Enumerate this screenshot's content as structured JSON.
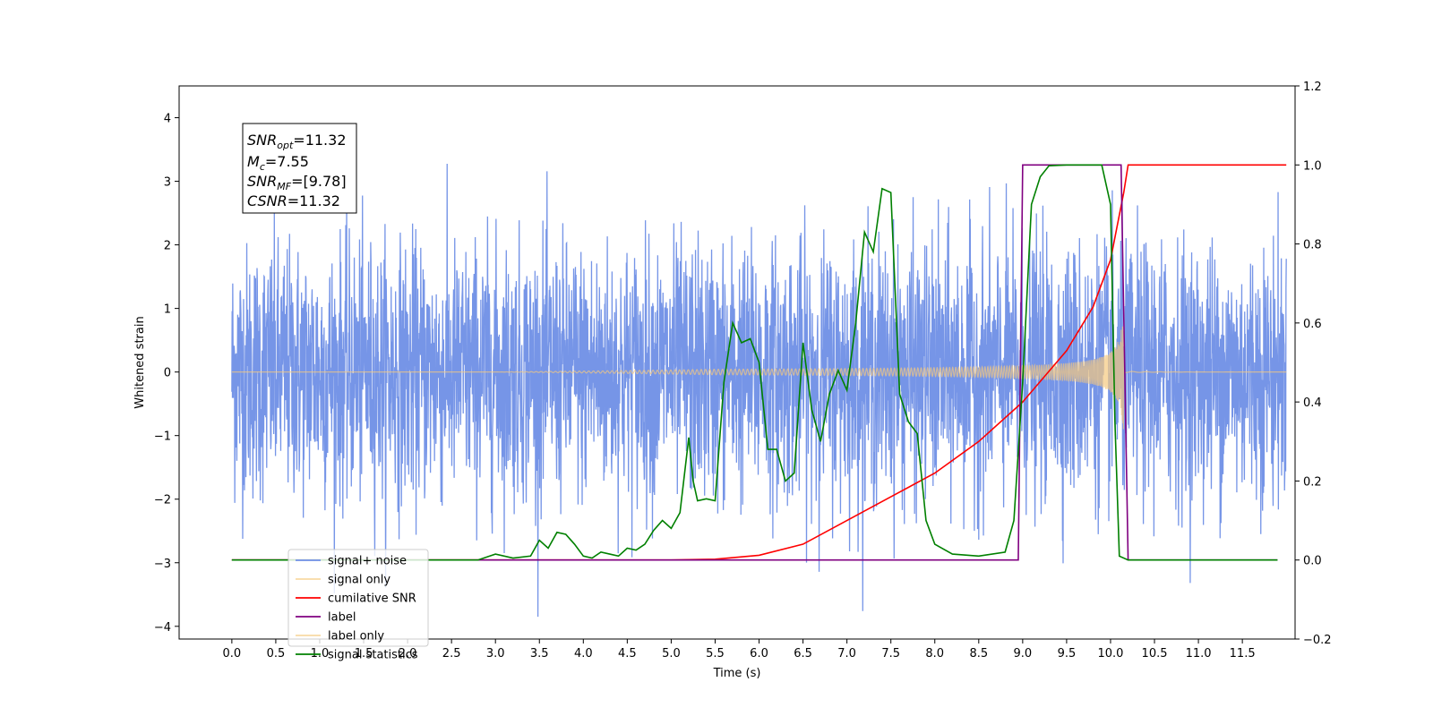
{
  "chart_data": {
    "type": "line",
    "xlabel": "Time (s)",
    "ylabel_left": "Whitened strain",
    "ylabel_right": "",
    "xlim": [
      -0.6,
      12.1
    ],
    "ylim_left": [
      -4.2,
      4.5
    ],
    "ylim_right": [
      -0.2,
      1.2
    ],
    "x_ticks": [
      "0.0",
      "0.5",
      "1.0",
      "1.5",
      "2.0",
      "2.5",
      "3.0",
      "3.5",
      "4.0",
      "4.5",
      "5.0",
      "5.5",
      "6.0",
      "6.5",
      "7.0",
      "7.5",
      "8.0",
      "8.5",
      "9.0",
      "9.5",
      "10.0",
      "10.5",
      "11.0",
      "11.5"
    ],
    "y_ticks_left": [
      "-4",
      "-3",
      "-2",
      "-1",
      "0",
      "1",
      "2",
      "3",
      "4"
    ],
    "y_ticks_right": [
      "-0.2",
      "0.0",
      "0.2",
      "0.4",
      "0.6",
      "0.8",
      "1.0",
      "1.2"
    ],
    "grid": false,
    "legend_position": "lower-left",
    "annotation": {
      "snr_opt": {
        "base": "SNR",
        "sub": "opt",
        "value": "=11.32"
      },
      "mc": {
        "base": "M",
        "sub": "c",
        "value": "=7.55"
      },
      "snr_mf": {
        "base": "SNR",
        "sub": "MF",
        "value": "=[9.78]"
      },
      "csnr": {
        "base": "CSNR",
        "value": "=11.32"
      }
    },
    "series": [
      {
        "name": "signal+ noise",
        "color": "#6f8fe6",
        "axis": "left",
        "style": "noise",
        "x_range": [
          0.0,
          12.0
        ],
        "sigma": 1.0,
        "envelope_max": 4.1
      },
      {
        "name": "signal only",
        "color": "#f5c97f",
        "axis": "left",
        "style": "chirp",
        "x_range": [
          0.0,
          10.15
        ],
        "amp_max": 0.9,
        "peak_time": 10.15
      },
      {
        "name": "cumilative SNR",
        "color": "#ff0000",
        "axis": "right",
        "x": [
          0.0,
          5.0,
          5.5,
          6.0,
          6.5,
          7.0,
          7.5,
          8.0,
          8.5,
          9.0,
          9.5,
          9.8,
          10.0,
          10.15,
          10.2,
          12.0
        ],
        "y": [
          0.0,
          0.0,
          0.002,
          0.012,
          0.04,
          0.1,
          0.16,
          0.22,
          0.3,
          0.4,
          0.53,
          0.64,
          0.76,
          0.93,
          1.0,
          1.0
        ]
      },
      {
        "name": "label",
        "color": "#800080",
        "axis": "right",
        "x": [
          0.0,
          8.95,
          9.0,
          10.12,
          10.2,
          11.9
        ],
        "y": [
          0.0,
          0.0,
          1.0,
          1.0,
          0.0,
          0.0
        ]
      },
      {
        "name": "label only",
        "color": "#f5c97f",
        "axis": "right",
        "hidden_line": true,
        "x": [],
        "y": []
      },
      {
        "name": "signal statistics",
        "color": "#008000",
        "axis": "right",
        "x": [
          0.0,
          2.8,
          3.0,
          3.2,
          3.4,
          3.5,
          3.6,
          3.7,
          3.8,
          3.9,
          4.0,
          4.1,
          4.2,
          4.3,
          4.4,
          4.5,
          4.6,
          4.7,
          4.8,
          4.9,
          5.0,
          5.1,
          5.2,
          5.25,
          5.3,
          5.4,
          5.5,
          5.6,
          5.7,
          5.8,
          5.9,
          6.0,
          6.1,
          6.2,
          6.3,
          6.4,
          6.5,
          6.6,
          6.7,
          6.8,
          6.9,
          7.0,
          7.1,
          7.2,
          7.3,
          7.4,
          7.5,
          7.6,
          7.7,
          7.8,
          7.9,
          8.0,
          8.2,
          8.5,
          8.8,
          8.9,
          9.0,
          9.1,
          9.2,
          9.3,
          9.5,
          9.9,
          10.0,
          10.05,
          10.1,
          10.2,
          11.9
        ],
        "y": [
          0.0,
          0.0,
          0.015,
          0.005,
          0.01,
          0.05,
          0.03,
          0.07,
          0.065,
          0.04,
          0.01,
          0.005,
          0.02,
          0.015,
          0.01,
          0.03,
          0.025,
          0.04,
          0.075,
          0.1,
          0.08,
          0.12,
          0.31,
          0.2,
          0.15,
          0.155,
          0.15,
          0.45,
          0.6,
          0.55,
          0.56,
          0.5,
          0.28,
          0.28,
          0.2,
          0.22,
          0.55,
          0.38,
          0.3,
          0.42,
          0.48,
          0.43,
          0.6,
          0.83,
          0.78,
          0.94,
          0.93,
          0.42,
          0.35,
          0.32,
          0.1,
          0.04,
          0.015,
          0.01,
          0.02,
          0.1,
          0.45,
          0.9,
          0.97,
          0.998,
          1.0,
          1.0,
          0.9,
          0.35,
          0.01,
          0.0,
          0.0
        ]
      }
    ]
  }
}
